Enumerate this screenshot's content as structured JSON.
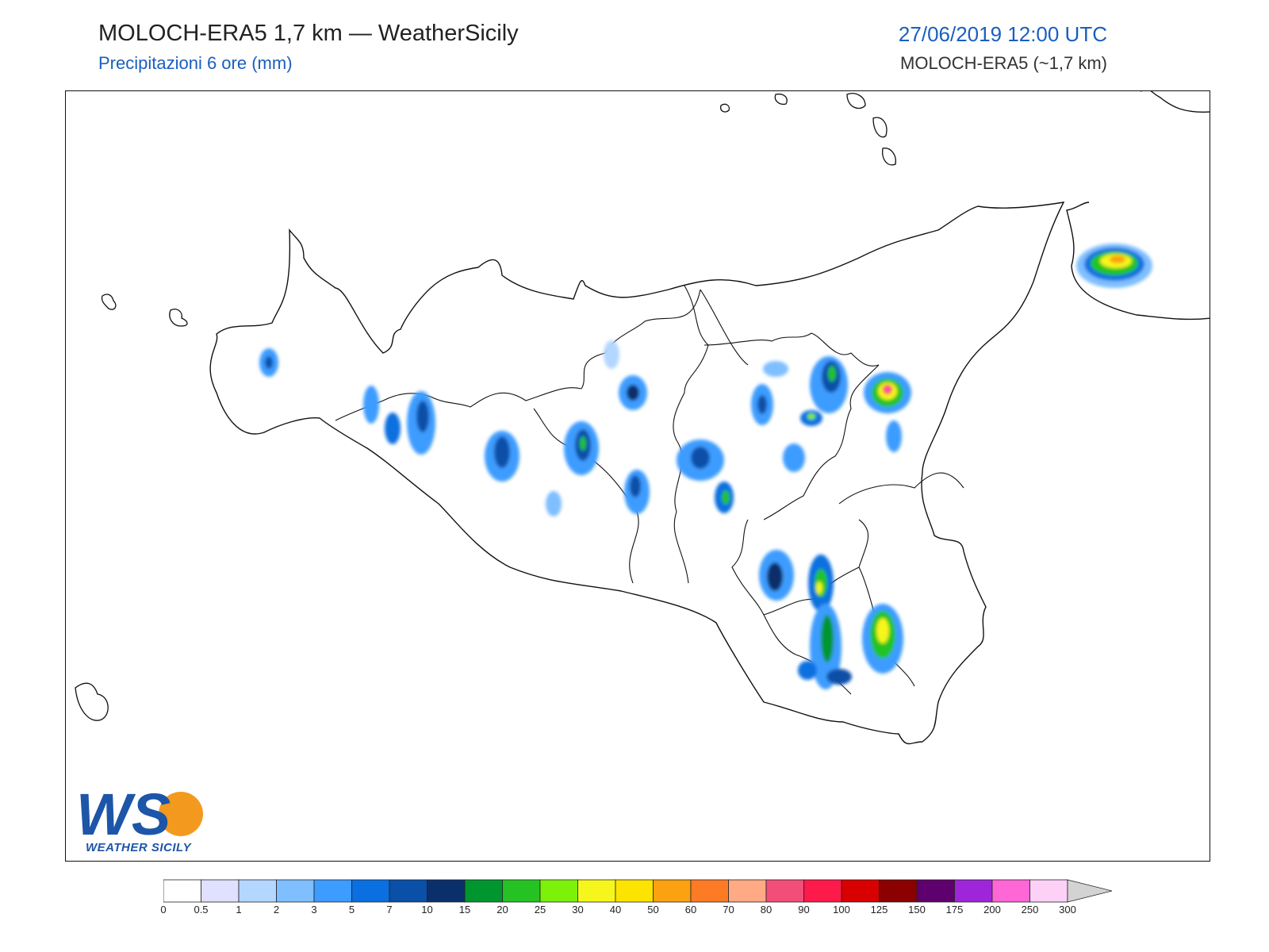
{
  "header": {
    "title": "MOLOCH-ERA5 1,7 km — WeatherSicily",
    "subtitle": "Precipitazioni 6 ore (mm)",
    "datetime": "27/06/2019 12:00 UTC",
    "model": "MOLOCH-ERA5 (~1,7 km)"
  },
  "logo": {
    "letters": "WS",
    "text": "WEATHER SICILY",
    "colors": {
      "blue": "#1d55a8",
      "orange": "#f39a1e"
    }
  },
  "legend": {
    "labels": [
      "0",
      "0.5",
      "1",
      "2",
      "3",
      "5",
      "7",
      "10",
      "15",
      "20",
      "25",
      "30",
      "40",
      "50",
      "60",
      "70",
      "80",
      "90",
      "100",
      "125",
      "150",
      "175",
      "200",
      "250",
      "300"
    ],
    "colors": [
      "#ffffff",
      "#e0e0ff",
      "#b4d7ff",
      "#7fbfff",
      "#3d9cff",
      "#0a6fe0",
      "#0a4fa8",
      "#0a2f6b",
      "#00962f",
      "#24c323",
      "#7cf20b",
      "#f6f61c",
      "#fde300",
      "#fca10f",
      "#fe7b26",
      "#ffaa85",
      "#f14f79",
      "#fe1a4a",
      "#d80000",
      "#8b0000",
      "#5e006d",
      "#9f26d8",
      "#ff66d6",
      "#fdd0f8"
    ],
    "overflow_color": "#d3d3d3"
  }
}
